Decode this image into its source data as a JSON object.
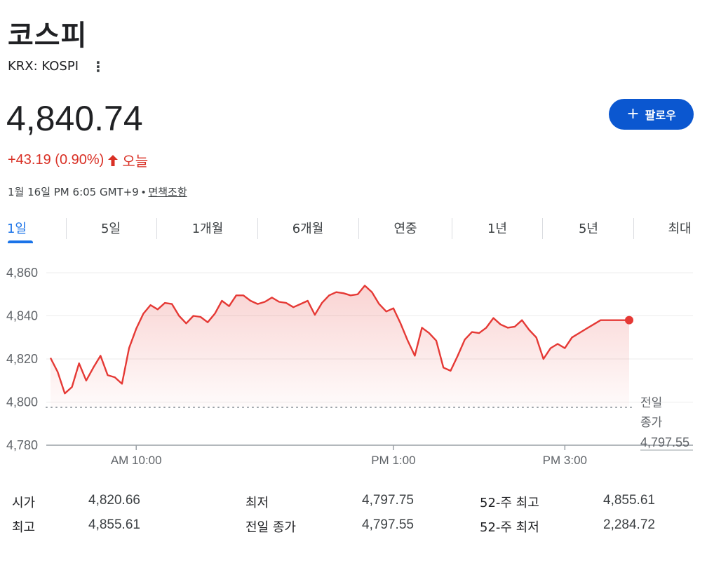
{
  "header": {
    "title": "코스피",
    "ticker": "KRX: KOSPI",
    "more_icon": "more-vertical-icon"
  },
  "quote": {
    "price": "4,840.74",
    "change": "+43.19 (0.90%)",
    "direction_icon": "arrow-up-icon",
    "period": "오늘",
    "up_color": "#d93025"
  },
  "follow": {
    "label": "팔로우",
    "icon": "plus-icon",
    "color": "#0b57d0"
  },
  "meta": {
    "timestamp": "1월 16일 PM 6:05 GMT+9",
    "separator": "•",
    "disclaimer": "면책조항"
  },
  "tabs": [
    {
      "label": "1일",
      "active": true
    },
    {
      "label": "5일"
    },
    {
      "label": "1개월"
    },
    {
      "label": "6개월"
    },
    {
      "label": "연중"
    },
    {
      "label": "1년"
    },
    {
      "label": "5년"
    },
    {
      "label": "최대"
    }
  ],
  "chart_data": {
    "type": "area",
    "y_ticks": [
      "4,860",
      "4,840",
      "4,820",
      "4,800",
      "4,780"
    ],
    "x_ticks": [
      "AM 10:00",
      "PM 1:00",
      "PM 3:00"
    ],
    "x_tick_positions_min": [
      60,
      240,
      360
    ],
    "ylim": [
      4780,
      4865
    ],
    "xlim_min": [
      0,
      405
    ],
    "grid": true,
    "line_color": "#e53935",
    "previous_close": {
      "label_line1": "전일",
      "label_line2": "종가",
      "value_label": "4,797.55",
      "value": 4797.55
    },
    "series": [
      {
        "x": [
          0,
          5,
          10,
          15,
          20,
          25,
          30,
          35,
          40,
          45,
          50,
          55,
          60,
          65,
          70,
          75,
          80,
          85,
          90,
          95,
          100,
          105,
          110,
          115,
          120,
          125,
          130,
          135,
          140,
          145,
          150,
          155,
          160,
          165,
          170,
          175,
          180,
          185,
          190,
          195,
          200,
          205,
          210,
          215,
          220,
          225,
          230,
          235,
          240,
          245,
          250,
          255,
          260,
          265,
          270,
          275,
          280,
          285,
          290,
          295,
          300,
          305,
          310,
          315,
          320,
          325,
          330,
          335,
          340,
          345,
          350,
          355,
          360,
          365,
          370,
          375,
          380,
          385,
          390,
          395,
          400,
          405
        ],
        "y": [
          4820.5,
          4814,
          4804,
          4807,
          4818,
          4810,
          4816,
          4821.5,
          4812.5,
          4811.5,
          4808.5,
          4825,
          4834,
          4841,
          4845,
          4843,
          4846,
          4845.5,
          4840,
          4836.5,
          4840,
          4839.5,
          4837,
          4841,
          4847,
          4844.5,
          4849.5,
          4849.5,
          4847,
          4845.5,
          4846.5,
          4848.5,
          4846.5,
          4846,
          4844,
          4845.5,
          4847,
          4840.5,
          4846,
          4849.5,
          4851,
          4850.5,
          4849.5,
          4850,
          4854,
          4851,
          4845.5,
          4842,
          4843.5,
          4836.5,
          4828.5,
          4821.5,
          4834.5,
          4832,
          4828.5,
          4816,
          4814.5,
          4821.5,
          4829,
          4832.5,
          4832,
          4834.5,
          4839,
          4836,
          4834.5,
          4835,
          4838,
          4833.5,
          4830,
          4820,
          4825,
          4827,
          4825,
          4830,
          4832,
          4834,
          4836,
          4838,
          4838,
          4838,
          4838,
          4838
        ]
      }
    ]
  },
  "stats": [
    {
      "label": "시가",
      "value": "4,820.66"
    },
    {
      "label": "최고",
      "value": "4,855.61"
    },
    {
      "label": "최저",
      "value": "4,797.75"
    },
    {
      "label": "전일 종가",
      "value": "4,797.55"
    },
    {
      "label": "52-주 최고",
      "value": "4,855.61"
    },
    {
      "label": "52-주 최저",
      "value": "2,284.72"
    }
  ]
}
